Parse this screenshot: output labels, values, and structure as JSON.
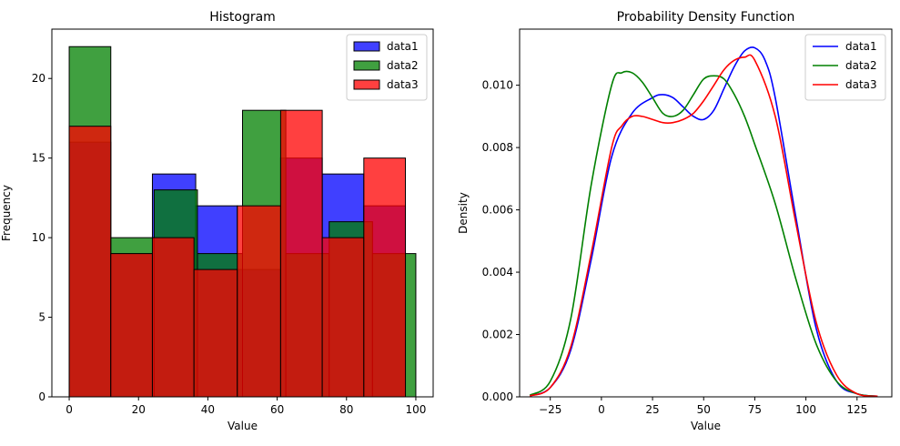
{
  "chart_data": [
    {
      "type": "bar",
      "subtype": "histogram-overlay",
      "title": "Histogram",
      "xlabel": "Value",
      "ylabel": "Frequency",
      "xlim": [
        -5,
        105
      ],
      "ylim": [
        0,
        23.1
      ],
      "xticks": [
        0,
        20,
        40,
        60,
        80,
        100
      ],
      "yticks": [
        0,
        5,
        10,
        15,
        20
      ],
      "grid": false,
      "legend_position": "top-right",
      "series": [
        {
          "name": "data1",
          "color": "#0000ff",
          "bins": [
            {
              "x0": 0,
              "x1": 12,
              "count": 16
            },
            {
              "x0": 12,
              "x1": 24,
              "count": 9
            },
            {
              "x0": 24,
              "x1": 36.5,
              "count": 14
            },
            {
              "x0": 36.5,
              "x1": 48.5,
              "count": 12
            },
            {
              "x0": 48.5,
              "x1": 61,
              "count": 8
            },
            {
              "x0": 61,
              "x1": 73,
              "count": 15
            },
            {
              "x0": 73,
              "x1": 85,
              "count": 14
            },
            {
              "x0": 85,
              "x1": 97,
              "count": 12
            }
          ]
        },
        {
          "name": "data2",
          "color": "#008000",
          "bins": [
            {
              "x0": 0,
              "x1": 12,
              "count": 22
            },
            {
              "x0": 12,
              "x1": 24.5,
              "count": 10
            },
            {
              "x0": 24.5,
              "x1": 37,
              "count": 13
            },
            {
              "x0": 37,
              "x1": 50,
              "count": 9
            },
            {
              "x0": 50,
              "x1": 62.5,
              "count": 18
            },
            {
              "x0": 62.5,
              "x1": 75,
              "count": 9
            },
            {
              "x0": 75,
              "x1": 87.5,
              "count": 11
            },
            {
              "x0": 87.5,
              "x1": 100,
              "count": 9
            }
          ]
        },
        {
          "name": "data3",
          "color": "#ff0000",
          "bins": [
            {
              "x0": 0,
              "x1": 12,
              "count": 17
            },
            {
              "x0": 12,
              "x1": 24,
              "count": 9
            },
            {
              "x0": 24,
              "x1": 36,
              "count": 10
            },
            {
              "x0": 36,
              "x1": 48.5,
              "count": 8
            },
            {
              "x0": 48.5,
              "x1": 61,
              "count": 12
            },
            {
              "x0": 61,
              "x1": 73,
              "count": 18
            },
            {
              "x0": 73,
              "x1": 85,
              "count": 10
            },
            {
              "x0": 85,
              "x1": 97,
              "count": 15
            }
          ]
        }
      ]
    },
    {
      "type": "line",
      "subtype": "kde",
      "title": "Probability Density Function",
      "xlabel": "Value",
      "ylabel": "Density",
      "xlim": [
        -40,
        142
      ],
      "ylim": [
        0,
        0.0118
      ],
      "xticks": [
        -25,
        0,
        25,
        50,
        75,
        100,
        125
      ],
      "yticks": [
        0.0,
        0.002,
        0.004,
        0.006,
        0.008,
        0.01
      ],
      "ytick_format": "%.3f",
      "grid": false,
      "legend_position": "top-right",
      "series": [
        {
          "name": "data1",
          "color": "#0000ff",
          "x": [
            -35,
            -25,
            -15,
            -5,
            5,
            15,
            25,
            30,
            35,
            40,
            45,
            50,
            55,
            60,
            65,
            70,
            75,
            80,
            85,
            95,
            105,
            115,
            125,
            135
          ],
          "y": [
            3e-05,
            0.0003,
            0.0015,
            0.0044,
            0.0077,
            0.0091,
            0.0096,
            0.0097,
            0.0096,
            0.0093,
            0.009,
            0.0089,
            0.0092,
            0.0099,
            0.0106,
            0.0111,
            0.0112,
            0.0108,
            0.0096,
            0.0058,
            0.0022,
            0.0005,
            0.0001,
            2e-05
          ]
        },
        {
          "name": "data2",
          "color": "#008000",
          "x": [
            -35,
            -25,
            -15,
            -5,
            5,
            10,
            15,
            20,
            25,
            30,
            35,
            40,
            45,
            50,
            55,
            60,
            65,
            70,
            75,
            85,
            95,
            105,
            115,
            125,
            135
          ],
          "y": [
            5e-05,
            0.0005,
            0.0025,
            0.0068,
            0.01,
            0.0104,
            0.0104,
            0.0101,
            0.0096,
            0.0091,
            0.009,
            0.0092,
            0.0097,
            0.0102,
            0.0103,
            0.0102,
            0.0097,
            0.009,
            0.0081,
            0.0062,
            0.0038,
            0.0017,
            0.0005,
            0.0001,
            2e-05
          ]
        },
        {
          "name": "data3",
          "color": "#ff0000",
          "x": [
            -35,
            -25,
            -15,
            -5,
            5,
            10,
            15,
            20,
            25,
            30,
            35,
            40,
            45,
            50,
            55,
            60,
            65,
            70,
            75,
            85,
            95,
            105,
            115,
            125,
            135
          ],
          "y": [
            3e-05,
            0.0003,
            0.0016,
            0.0046,
            0.008,
            0.0087,
            0.009,
            0.009,
            0.0089,
            0.0088,
            0.0088,
            0.0089,
            0.0091,
            0.0095,
            0.01,
            0.0105,
            0.0108,
            0.0109,
            0.0108,
            0.009,
            0.0056,
            0.0024,
            0.0007,
            0.0001,
            2e-05
          ]
        }
      ]
    }
  ]
}
